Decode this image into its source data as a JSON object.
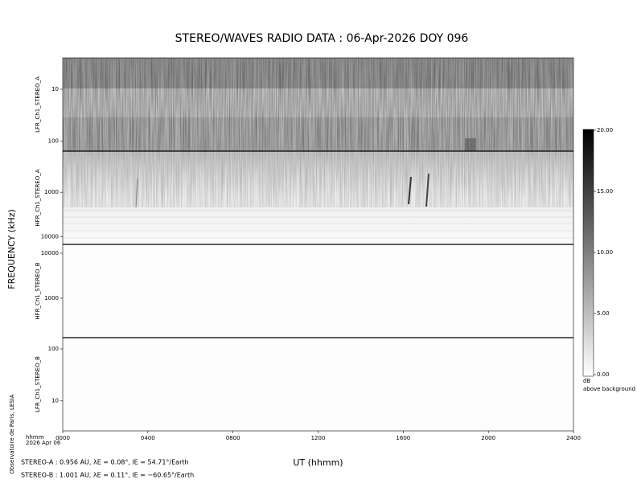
{
  "title": "STEREO/WAVES  RADIO  DATA : 06-Apr-2026  DOY 096",
  "ylabel": "FREQUENCY (kHz)",
  "credit": "Observatoire de Paris, LESIA",
  "x_unit_note": "hhmm",
  "date_note": "2026 Apr 06",
  "footer": [
    "STEREO-A : 0.956 AU, λE = 0.08°, lE = 54.71°/Earth",
    "STEREO-B : 1.001 AU, λE = 0.11°, lE = −60.65°/Earth"
  ],
  "colorbar": {
    "label": "dB",
    "sublabel": "above background",
    "zlim": [
      0,
      20
    ],
    "zticks": [
      {
        "value": 0,
        "label": "0.00"
      },
      {
        "value": 5,
        "label": "5.00"
      },
      {
        "value": 10,
        "label": "10.00"
      },
      {
        "value": 15,
        "label": "15.00"
      },
      {
        "value": 20,
        "label": "20.00"
      }
    ]
  },
  "chart_data": [
    {
      "type": "spectrogram",
      "panel_label": "LFR_Ch1_STEREO_A",
      "log_y": true,
      "ylim": [
        155,
        2.5
      ],
      "yticks": [
        10,
        100
      ]
    },
    {
      "type": "spectrogram",
      "panel_label": "HFR_Ch1_STEREO_A",
      "log_y": true,
      "ylim": [
        15000,
        118
      ],
      "yticks": [
        1000,
        10000
      ]
    },
    {
      "type": "spectrogram",
      "panel_label": "HFR_Ch1_STEREO_B",
      "log_y": true,
      "ylim": [
        133,
        15700
      ],
      "yticks": [
        10000,
        1000
      ]
    },
    {
      "type": "spectrogram",
      "panel_label": "LFR_Ch1_STEREO_B",
      "log_y": true,
      "ylim": [
        2.6,
        165
      ],
      "yticks": [
        100,
        10
      ],
      "xlabel": "UT (hhmm)",
      "xlim": [
        0,
        24
      ],
      "xticks": [
        {
          "value": 0,
          "label": "0000"
        },
        {
          "value": 4,
          "label": "0400"
        },
        {
          "value": 8,
          "label": "0800"
        },
        {
          "value": 12,
          "label": "1200"
        },
        {
          "value": 16,
          "label": "1600"
        },
        {
          "value": 20,
          "label": "2000"
        },
        {
          "value": 24,
          "label": "2400"
        }
      ]
    }
  ]
}
